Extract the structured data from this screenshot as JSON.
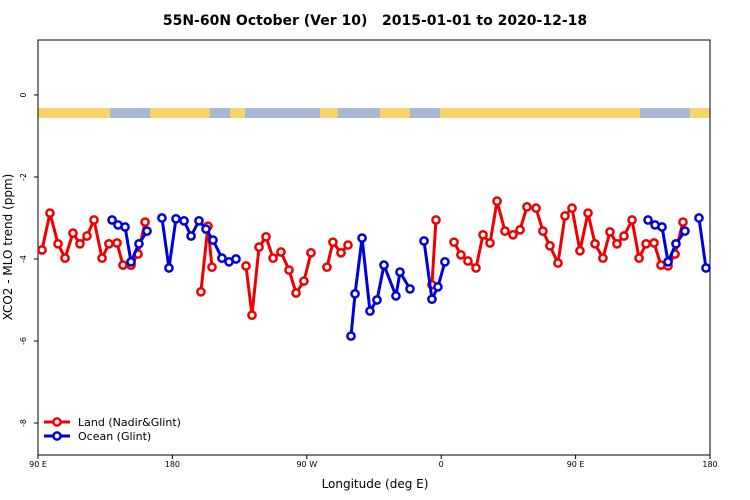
{
  "chart_data": {
    "type": "line",
    "title": "55N-60N October (Ver 10)   2015-01-01 to 2020-12-18",
    "xlabel": "Longitude (deg E)",
    "ylabel": "XCO2 - MLO trend (ppm)",
    "xlim": [
      90,
      540
    ],
    "ylim": [
      -8.78,
      1.34
    ],
    "xticks": [
      {
        "value": 90,
        "label": "90 E"
      },
      {
        "value": 180,
        "label": "180"
      },
      {
        "value": 270,
        "label": "90 W"
      },
      {
        "value": 360,
        "label": "0"
      },
      {
        "value": 450,
        "label": "90 E"
      },
      {
        "value": 540,
        "label": "180"
      }
    ],
    "yticks": [
      0,
      -2,
      -4,
      -6,
      -8
    ],
    "legend": "bottom-left",
    "series": [
      {
        "name": "Land (Nadir&Glint)",
        "color": "#ee0000",
        "x": [
          92.7,
          98.0,
          103.4,
          108.1,
          113.4,
          118.1,
          122.8,
          127.5,
          132.9,
          137.5,
          142.9,
          146.9,
          152.3,
          157.0,
          161.7,
          175,
          199.1,
          203.8,
          206.5,
          225,
          229.3,
          233.3,
          238.0,
          242.7,
          247.4,
          252.7,
          258.1,
          262.8,
          268.1,
          272.8,
          280,
          283.5,
          287.5,
          292.9,
          297.6,
          350,
          353.8,
          356.5,
          365,
          368.6,
          373.2,
          377.9,
          383.3,
          388.0,
          392.7,
          397.4,
          402.7,
          408.1,
          412.8,
          417.4,
          423.5,
          428.1,
          432.8,
          438.2,
          442.9,
          447.6,
          452.9,
          458.3,
          463.0,
          468.3,
          473.0,
          477.7,
          482.4,
          487.8,
          492.5,
          497.2,
          502.5,
          507.2,
          511.9,
          516.6,
          521.9
        ],
        "values": [
          -3.78,
          -2.88,
          -3.63,
          -3.98,
          -3.37,
          -3.63,
          -3.44,
          -3.05,
          -3.98,
          -3.63,
          -3.61,
          -4.15,
          -4.15,
          -3.88,
          -3.1,
          null,
          -4.8,
          -3.2,
          -4.2,
          null,
          -4.17,
          -5.37,
          -3.71,
          -3.46,
          -3.98,
          -3.83,
          -4.27,
          -4.83,
          -4.54,
          -3.85,
          null,
          -4.2,
          -3.59,
          -3.85,
          -3.66,
          null,
          -4.63,
          -3.05,
          null,
          -3.59,
          -3.9,
          -4.05,
          -4.22,
          -3.41,
          -3.61,
          -2.59,
          -3.32,
          -3.41,
          -3.29,
          -2.73,
          -2.76,
          -3.32,
          -3.68,
          -4.1,
          -2.95,
          -2.76,
          -3.8,
          -2.88,
          -3.63,
          -3.98,
          -3.34,
          -3.63,
          -3.44,
          -3.05,
          -3.98,
          -3.63,
          -3.61,
          -4.15,
          -4.17,
          -3.88,
          -3.1
        ]
      },
      {
        "name": "Ocean (Glint)",
        "color": "#0000dd",
        "x": [
          139.6,
          143.6,
          148.3,
          152.3,
          157.6,
          163.0,
          165,
          173.0,
          177.7,
          182.4,
          187.8,
          192.5,
          197.8,
          202.5,
          207.2,
          213.2,
          217.9,
          222.6,
          300,
          299.6,
          302.3,
          307.0,
          312.3,
          317.0,
          321.7,
          329.7,
          332.4,
          339.1,
          345,
          348.5,
          353.8,
          357.8,
          362.5,
          400,
          498.5,
          503.2,
          507.9,
          511.9,
          517.2,
          523.2,
          528,
          532.6,
          537.3
        ],
        "values": [
          -3.05,
          -3.17,
          -3.22,
          -4.07,
          -3.63,
          -3.32,
          null,
          -3.0,
          -4.22,
          -3.02,
          -3.07,
          -3.44,
          -3.07,
          -3.27,
          -3.54,
          -3.98,
          -4.07,
          -4.0,
          null,
          -5.88,
          -4.85,
          -3.49,
          -5.27,
          -5.0,
          -4.15,
          -4.9,
          -4.32,
          -4.73,
          null,
          -3.56,
          -4.98,
          -4.68,
          -4.07,
          null,
          -3.05,
          -3.17,
          -3.22,
          -4.07,
          -3.63,
          -3.32,
          null,
          -3.0,
          -4.22
        ]
      }
    ]
  }
}
